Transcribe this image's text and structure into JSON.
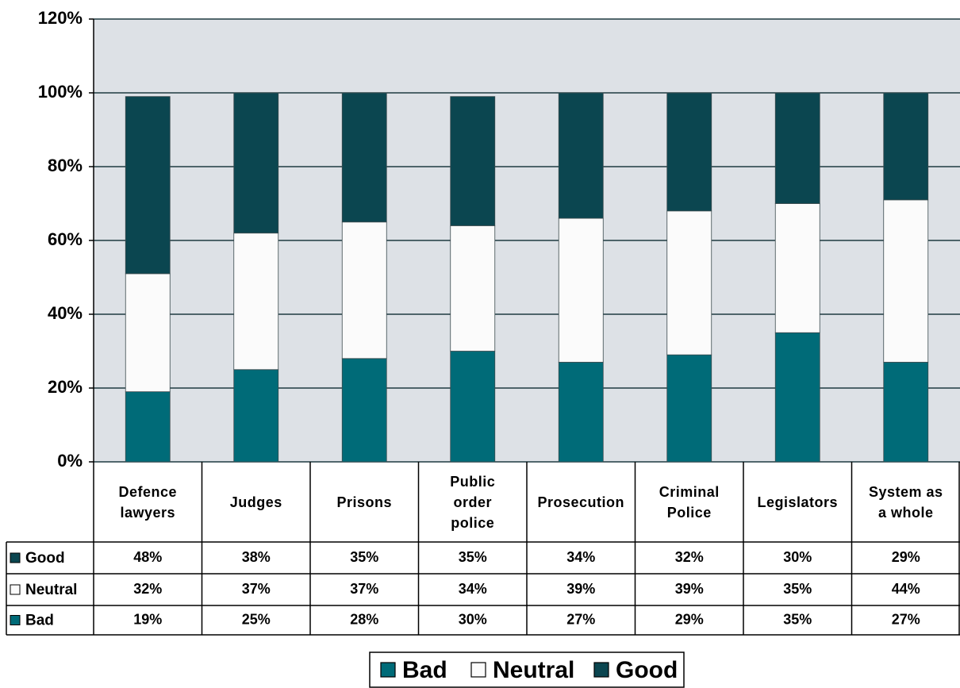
{
  "chart_data": {
    "type": "bar",
    "stacked": true,
    "categories": [
      "Defence lawyers",
      "Judges",
      "Prisons",
      "Public order police",
      "Prosecution",
      "Criminal Police",
      "Legislators",
      "System as a whole"
    ],
    "series": [
      {
        "name": "Bad",
        "color": "#006b78",
        "values": [
          19,
          25,
          28,
          30,
          27,
          29,
          35,
          27
        ],
        "value_labels": [
          "19%",
          "25%",
          "28%",
          "30%",
          "27%",
          "29%",
          "35%",
          "27%"
        ]
      },
      {
        "name": "Neutral",
        "color": "#fbfbfb",
        "values": [
          32,
          37,
          37,
          34,
          39,
          39,
          35,
          44
        ],
        "value_labels": [
          "32%",
          "37%",
          "37%",
          "34%",
          "39%",
          "39%",
          "35%",
          "44%"
        ]
      },
      {
        "name": "Good",
        "color": "#0b4650",
        "values": [
          48,
          38,
          35,
          35,
          34,
          32,
          30,
          29
        ],
        "value_labels": [
          "48%",
          "38%",
          "35%",
          "35%",
          "34%",
          "32%",
          "30%",
          "29%"
        ]
      }
    ],
    "ylim": [
      0,
      120
    ],
    "yticks": [
      {
        "value": 0,
        "label": "0%"
      },
      {
        "value": 20,
        "label": "20%"
      },
      {
        "value": 40,
        "label": "40%"
      },
      {
        "value": 60,
        "label": "60%"
      },
      {
        "value": 80,
        "label": "80%"
      },
      {
        "value": 100,
        "label": "100%"
      },
      {
        "value": 120,
        "label": "120%"
      }
    ],
    "grid": true,
    "legend": "bottom",
    "plot_background": "#dde1e6"
  }
}
